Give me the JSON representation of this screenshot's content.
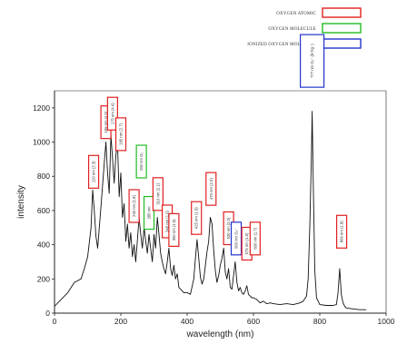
{
  "chart_data": {
    "type": "line",
    "title": "",
    "xlabel": "wavelength (nm)",
    "ylabel": "intensity",
    "xlim": [
      0,
      1000
    ],
    "ylim": [
      0,
      1300
    ],
    "xticks": [
      0,
      200,
      400,
      600,
      800,
      1000
    ],
    "yticks": [
      0,
      200,
      400,
      600,
      800,
      1000,
      1200
    ],
    "grid": false,
    "legend_position": "top-right",
    "legend": [
      {
        "label": "OXYGEN ATOMIC",
        "color": "#e02020"
      },
      {
        "label": "OXYGEN MOLECULE",
        "color": "#22bb22"
      },
      {
        "label": "IONIZED OXYGEN MOLECULE",
        "color": "#2233cc"
      }
    ],
    "series": [
      {
        "x": [
          0,
          20,
          40,
          60,
          80,
          90,
          100,
          110,
          115,
          120,
          125,
          130,
          140,
          150,
          155,
          160,
          165,
          170,
          175,
          180,
          185,
          190,
          195,
          200,
          205,
          210,
          215,
          220,
          225,
          230,
          235,
          240,
          245,
          250,
          255,
          260,
          265,
          270,
          275,
          280,
          285,
          290,
          295,
          300,
          305,
          310,
          315,
          320,
          325,
          330,
          335,
          340,
          345,
          350,
          355,
          360,
          365,
          370,
          375,
          380,
          390,
          400,
          410,
          420,
          425,
          430,
          435,
          440,
          445,
          450,
          455,
          460,
          465,
          470,
          475,
          480,
          485,
          490,
          495,
          500,
          505,
          510,
          515,
          520,
          525,
          530,
          535,
          540,
          545,
          550,
          555,
          560,
          565,
          570,
          575,
          580,
          585,
          590,
          595,
          600,
          610,
          620,
          630,
          640,
          650,
          660,
          680,
          700,
          720,
          740,
          750,
          760,
          765,
          770,
          775,
          777,
          780,
          785,
          790,
          800,
          820,
          840,
          850,
          855,
          860,
          865,
          870,
          875,
          880,
          900,
          920,
          940
        ],
        "y": [
          40,
          80,
          120,
          180,
          200,
          260,
          330,
          500,
          720,
          600,
          450,
          380,
          620,
          880,
          1000,
          820,
          700,
          1040,
          900,
          760,
          920,
          1000,
          680,
          820,
          560,
          640,
          420,
          520,
          380,
          470,
          330,
          400,
          300,
          430,
          560,
          460,
          380,
          500,
          420,
          350,
          460,
          380,
          300,
          460,
          380,
          560,
          460,
          350,
          300,
          260,
          230,
          300,
          380,
          260,
          220,
          280,
          200,
          230,
          150,
          140,
          120,
          120,
          110,
          200,
          320,
          430,
          320,
          210,
          170,
          200,
          280,
          360,
          420,
          560,
          520,
          370,
          250,
          180,
          220,
          280,
          320,
          380,
          240,
          200,
          260,
          150,
          140,
          220,
          300,
          180,
          130,
          150,
          120,
          110,
          130,
          160,
          110,
          100,
          90,
          90,
          80,
          60,
          70,
          55,
          60,
          55,
          50,
          55,
          50,
          60,
          70,
          100,
          200,
          520,
          950,
          1180,
          800,
          250,
          90,
          50,
          45,
          45,
          50,
          120,
          260,
          110,
          60,
          40,
          30,
          25,
          20,
          20
        ]
      }
    ],
    "annotations": [
      {
        "label": "120 nm (2.3)",
        "x": 118,
        "y": 720,
        "color": "#e02020"
      },
      {
        "label": "155 nm (4.5)",
        "x": 155,
        "y": 1010,
        "color": "#e02020"
      },
      {
        "label": "175 nm (4.4)",
        "x": 175,
        "y": 1060,
        "color": "#e02020"
      },
      {
        "label": "195 nm (2.7)",
        "x": 200,
        "y": 940,
        "color": "#e02020"
      },
      {
        "label": "240 nm (1.8)",
        "x": 240,
        "y": 520,
        "color": "#e02020"
      },
      {
        "label": "260 nm O₂",
        "x": 262,
        "y": 780,
        "color": "#22bb22"
      },
      {
        "label": "285 nm",
        "x": 285,
        "y": 480,
        "color": "#22bb22"
      },
      {
        "label": "310 nm (2.1)",
        "x": 312,
        "y": 590,
        "color": "#e02020"
      },
      {
        "label": "340 nm (1.6)",
        "x": 340,
        "y": 430,
        "color": "#e02020"
      },
      {
        "label": "360 nm (1.5)",
        "x": 360,
        "y": 380,
        "color": "#e02020"
      },
      {
        "label": "425 nm (1.9)",
        "x": 428,
        "y": 450,
        "color": "#e02020"
      },
      {
        "label": "470 nm (2.0)",
        "x": 472,
        "y": 620,
        "color": "#e02020"
      },
      {
        "label": "520 nm (2.0)",
        "x": 525,
        "y": 390,
        "color": "#e02020"
      },
      {
        "label": "560 nm O₂⁺",
        "x": 548,
        "y": 330,
        "color": "#2233cc"
      },
      {
        "label": "575 nm (1.6)",
        "x": 580,
        "y": 300,
        "color": "#e02020"
      },
      {
        "label": "600 nm (1.7)",
        "x": 605,
        "y": 330,
        "color": "#e02020"
      },
      {
        "label": "777 nm O₂⁺ (b⁴Σg⁻)",
        "x": 777,
        "y": 1310,
        "color": "#2233cc"
      },
      {
        "label": "866 nm (1.8)",
        "x": 866,
        "y": 370,
        "color": "#e02020"
      }
    ]
  }
}
